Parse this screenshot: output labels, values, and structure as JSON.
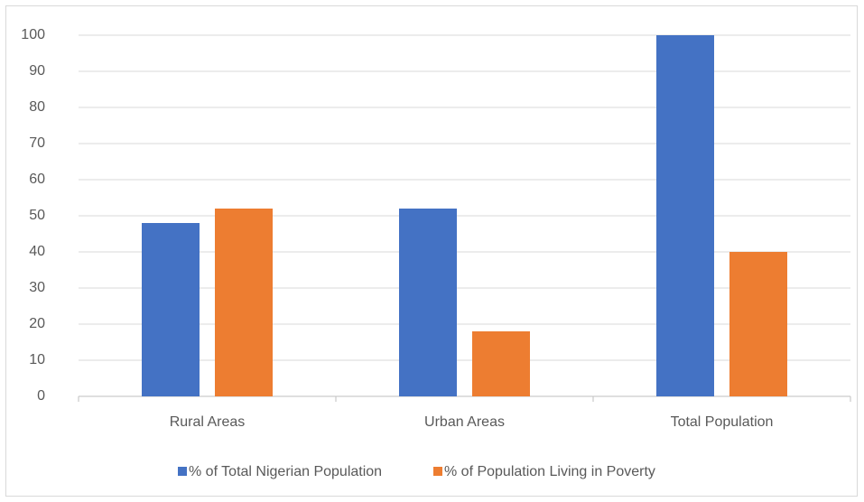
{
  "chart_data": {
    "type": "bar",
    "categories": [
      "Rural Areas",
      "Urban Areas",
      "Total Population"
    ],
    "series": [
      {
        "name": "% of Total Nigerian Population",
        "color": "#4472c4",
        "values": [
          48,
          52,
          100
        ]
      },
      {
        "name": "% of Population Living in Poverty",
        "color": "#ed7d31",
        "values": [
          52,
          18,
          40
        ]
      }
    ],
    "ylim": [
      0,
      100
    ],
    "yticks": [
      0,
      10,
      20,
      30,
      40,
      50,
      60,
      70,
      80,
      90,
      100
    ],
    "grid": true,
    "legend": "bottom"
  }
}
